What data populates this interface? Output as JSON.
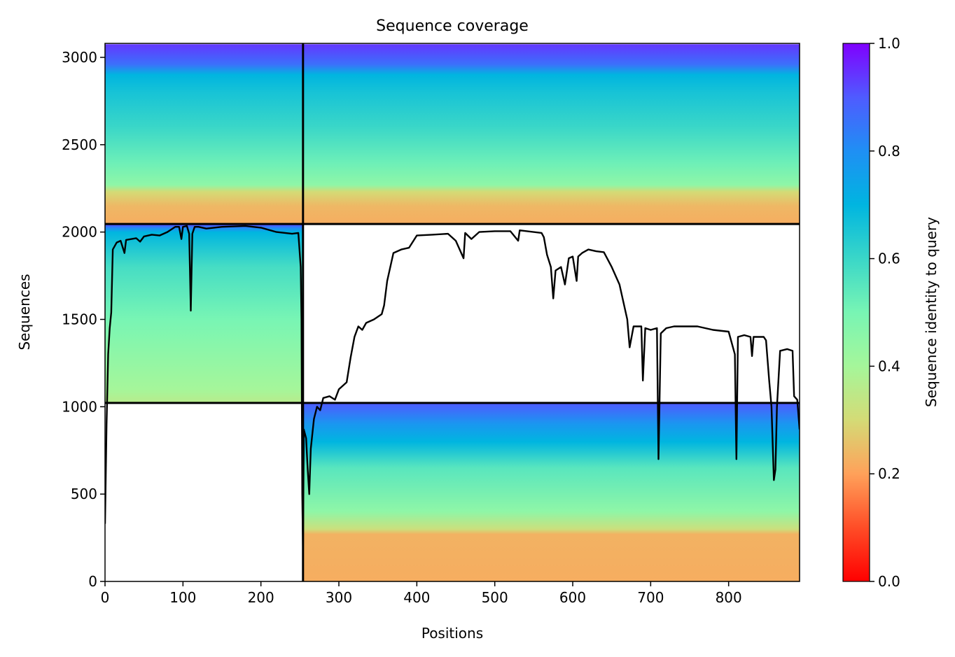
{
  "chart_data": {
    "type": "heatmap",
    "title": "Sequence coverage",
    "xlabel": "Positions",
    "ylabel": "Sequences",
    "xlim": [
      0,
      891
    ],
    "ylim": [
      0,
      3080
    ],
    "x_ticks": [
      0,
      100,
      200,
      300,
      400,
      500,
      600,
      700,
      800
    ],
    "y_ticks": [
      0,
      500,
      1000,
      1500,
      2000,
      2500,
      3000
    ],
    "colorbar": {
      "label": "Sequence identity to query",
      "range": [
        0,
        1
      ],
      "ticks": [
        "0.0",
        "0.2",
        "0.4",
        "0.6",
        "0.8",
        "1.0"
      ],
      "colormap": "rainbow_r"
    },
    "segment_boundaries_x": [
      254
    ],
    "group_boundaries_y": [
      1022,
      2046
    ],
    "blocks": [
      {
        "x0": 0,
        "x1": 254,
        "y0": 2046,
        "y1": 3075,
        "id_top": 0.93,
        "id_bottom": 0.22,
        "profile": [
          [
            2046,
            0.22
          ],
          [
            2150,
            0.24
          ],
          [
            2230,
            0.3
          ],
          [
            2270,
            0.45
          ],
          [
            2400,
            0.52
          ],
          [
            2600,
            0.6
          ],
          [
            2800,
            0.66
          ],
          [
            2900,
            0.7
          ],
          [
            2960,
            0.86
          ],
          [
            3075,
            0.94
          ]
        ]
      },
      {
        "x0": 254,
        "x1": 891,
        "y0": 2046,
        "y1": 3075,
        "id_top": 0.93,
        "id_bottom": 0.22,
        "profile": [
          [
            2046,
            0.22
          ],
          [
            2150,
            0.24
          ],
          [
            2230,
            0.3
          ],
          [
            2270,
            0.45
          ],
          [
            2400,
            0.52
          ],
          [
            2600,
            0.6
          ],
          [
            2800,
            0.66
          ],
          [
            2900,
            0.7
          ],
          [
            2960,
            0.86
          ],
          [
            3075,
            0.94
          ]
        ]
      },
      {
        "x0": 0,
        "x1": 254,
        "y0": 1022,
        "y1": 2046,
        "id_top": 0.9,
        "id_bottom": 0.36,
        "profile": [
          [
            1022,
            0.36
          ],
          [
            1100,
            0.4
          ],
          [
            1300,
            0.45
          ],
          [
            1500,
            0.5
          ],
          [
            1800,
            0.58
          ],
          [
            2000,
            0.7
          ],
          [
            2025,
            0.82
          ],
          [
            2046,
            0.93
          ]
        ]
      },
      {
        "x0": 254,
        "x1": 891,
        "y0": 0,
        "y1": 1022,
        "id_top": 0.9,
        "id_bottom": 0.22,
        "profile": [
          [
            0,
            0.22
          ],
          [
            270,
            0.23
          ],
          [
            300,
            0.32
          ],
          [
            400,
            0.45
          ],
          [
            650,
            0.55
          ],
          [
            800,
            0.7
          ],
          [
            900,
            0.78
          ],
          [
            1022,
            0.9
          ]
        ]
      }
    ],
    "coverage_line": [
      [
        0,
        330
      ],
      [
        2,
        900
      ],
      [
        4,
        1300
      ],
      [
        6,
        1450
      ],
      [
        8,
        1540
      ],
      [
        10,
        1900
      ],
      [
        15,
        1940
      ],
      [
        20,
        1950
      ],
      [
        25,
        1880
      ],
      [
        27,
        1955
      ],
      [
        40,
        1965
      ],
      [
        45,
        1945
      ],
      [
        50,
        1975
      ],
      [
        60,
        1985
      ],
      [
        70,
        1980
      ],
      [
        80,
        2000
      ],
      [
        90,
        2030
      ],
      [
        95,
        2030
      ],
      [
        98,
        1960
      ],
      [
        100,
        2030
      ],
      [
        105,
        2035
      ],
      [
        108,
        1990
      ],
      [
        110,
        1550
      ],
      [
        112,
        1990
      ],
      [
        115,
        2030
      ],
      [
        120,
        2030
      ],
      [
        130,
        2020
      ],
      [
        150,
        2030
      ],
      [
        180,
        2035
      ],
      [
        200,
        2025
      ],
      [
        220,
        2000
      ],
      [
        240,
        1990
      ],
      [
        248,
        1995
      ],
      [
        251,
        1800
      ],
      [
        252,
        1500
      ],
      [
        253,
        500
      ],
      [
        254,
        170
      ],
      [
        255,
        870
      ],
      [
        258,
        820
      ],
      [
        260,
        640
      ],
      [
        262,
        500
      ],
      [
        264,
        760
      ],
      [
        268,
        930
      ],
      [
        272,
        1000
      ],
      [
        276,
        980
      ],
      [
        280,
        1050
      ],
      [
        288,
        1060
      ],
      [
        295,
        1040
      ],
      [
        300,
        1100
      ],
      [
        310,
        1140
      ],
      [
        315,
        1280
      ],
      [
        320,
        1400
      ],
      [
        325,
        1460
      ],
      [
        330,
        1440
      ],
      [
        335,
        1480
      ],
      [
        345,
        1500
      ],
      [
        355,
        1530
      ],
      [
        358,
        1580
      ],
      [
        362,
        1720
      ],
      [
        370,
        1880
      ],
      [
        380,
        1900
      ],
      [
        390,
        1910
      ],
      [
        400,
        1980
      ],
      [
        420,
        1985
      ],
      [
        440,
        1990
      ],
      [
        450,
        1950
      ],
      [
        460,
        1850
      ],
      [
        462,
        1995
      ],
      [
        470,
        1960
      ],
      [
        480,
        2000
      ],
      [
        500,
        2005
      ],
      [
        520,
        2005
      ],
      [
        530,
        1950
      ],
      [
        532,
        2010
      ],
      [
        560,
        1995
      ],
      [
        563,
        1970
      ],
      [
        567,
        1870
      ],
      [
        572,
        1800
      ],
      [
        575,
        1620
      ],
      [
        578,
        1780
      ],
      [
        585,
        1800
      ],
      [
        590,
        1700
      ],
      [
        595,
        1850
      ],
      [
        600,
        1860
      ],
      [
        605,
        1720
      ],
      [
        607,
        1860
      ],
      [
        612,
        1880
      ],
      [
        620,
        1900
      ],
      [
        630,
        1890
      ],
      [
        640,
        1885
      ],
      [
        650,
        1800
      ],
      [
        660,
        1700
      ],
      [
        670,
        1500
      ],
      [
        673,
        1340
      ],
      [
        678,
        1460
      ],
      [
        688,
        1460
      ],
      [
        690,
        1150
      ],
      [
        693,
        1450
      ],
      [
        700,
        1440
      ],
      [
        708,
        1450
      ],
      [
        710,
        700
      ],
      [
        713,
        1420
      ],
      [
        720,
        1450
      ],
      [
        730,
        1460
      ],
      [
        740,
        1460
      ],
      [
        760,
        1460
      ],
      [
        780,
        1440
      ],
      [
        800,
        1430
      ],
      [
        808,
        1300
      ],
      [
        810,
        700
      ],
      [
        812,
        1400
      ],
      [
        820,
        1410
      ],
      [
        828,
        1400
      ],
      [
        830,
        1290
      ],
      [
        832,
        1400
      ],
      [
        845,
        1400
      ],
      [
        848,
        1380
      ],
      [
        852,
        1150
      ],
      [
        855,
        1000
      ],
      [
        858,
        580
      ],
      [
        860,
        640
      ],
      [
        862,
        1000
      ],
      [
        866,
        1320
      ],
      [
        875,
        1330
      ],
      [
        882,
        1320
      ],
      [
        884,
        1060
      ],
      [
        888,
        1040
      ],
      [
        891,
        870
      ]
    ]
  }
}
